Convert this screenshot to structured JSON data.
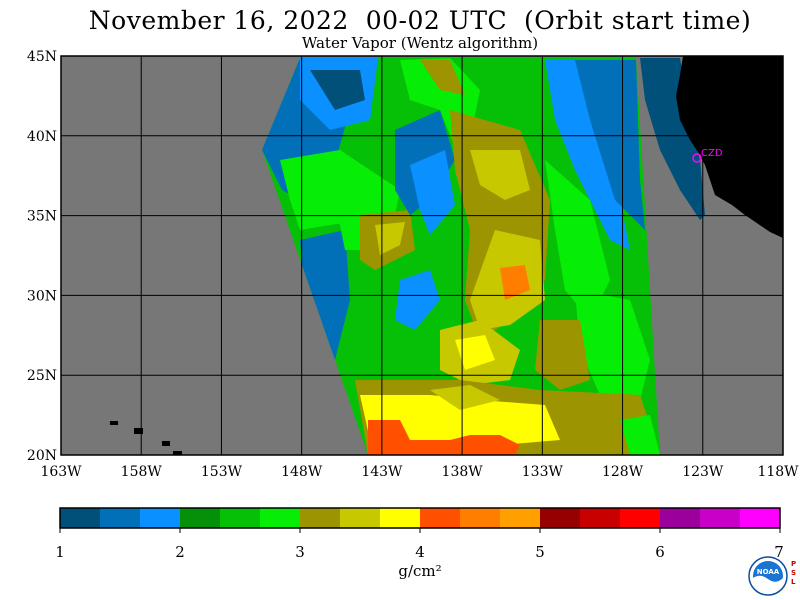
{
  "header": {
    "title": "November 16, 2022  00-02 UTC  (Orbit start time)",
    "subtitle": "Water Vapor (Wentz algorithm)"
  },
  "map": {
    "lat_labels": [
      "45N",
      "40N",
      "35N",
      "30N",
      "25N",
      "20N"
    ],
    "lon_labels": [
      "163W",
      "158W",
      "153W",
      "148W",
      "143W",
      "138W",
      "133W",
      "128W",
      "123W",
      "118W"
    ],
    "lat_range": [
      20,
      45
    ],
    "lon_range": [
      -163,
      -118
    ],
    "station_label": "CZD",
    "background_color": "#777777",
    "land_color": "#000000",
    "station_color": "#ff00ff"
  },
  "colorbar": {
    "labels": [
      "1",
      "2",
      "3",
      "4",
      "5",
      "6",
      "7"
    ],
    "unit": "g/cm²",
    "colors": [
      "#01507a",
      "#0270b8",
      "#0a90ff",
      "#049008",
      "#06c008",
      "#06ee06",
      "#9c9400",
      "#c8c800",
      "#ffff00",
      "#ff5000",
      "#ff7e00",
      "#ffa000",
      "#960000",
      "#c80000",
      "#ff0000",
      "#9c009c",
      "#c800c8",
      "#ff00ff"
    ]
  },
  "logo": {
    "text": "NOAA",
    "side_text": [
      "P",
      "S",
      "L"
    ]
  }
}
